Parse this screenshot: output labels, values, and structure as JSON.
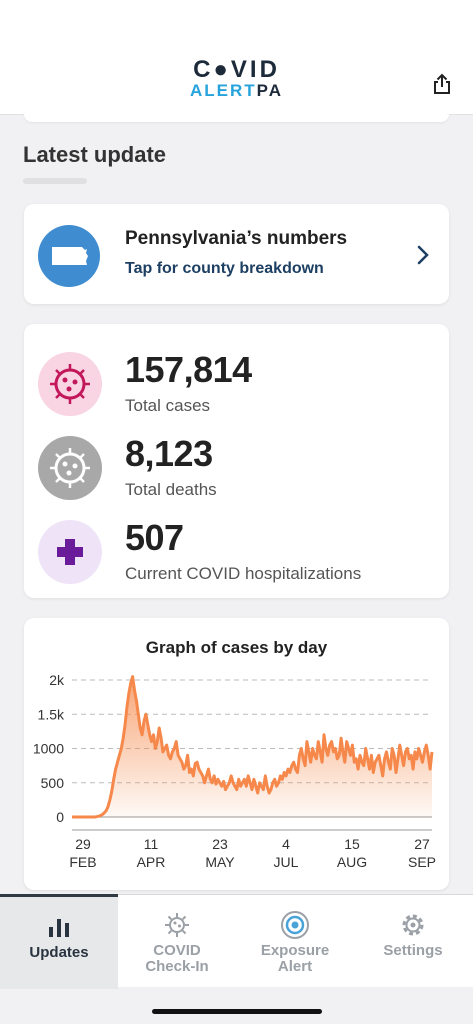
{
  "header": {
    "logo_top": "C●VID",
    "logo_bottom_a": "ALERT",
    "logo_bottom_b": "PA",
    "share_icon": "share-icon"
  },
  "section": {
    "title": "Latest update"
  },
  "pa_card": {
    "title": "Pennsylvania’s numbers",
    "subtitle": "Tap for county breakdown",
    "icon": "pennsylvania-map-icon"
  },
  "stats": {
    "cases": {
      "value": "157,814",
      "label": "Total cases",
      "color": "#f9d4e2"
    },
    "deaths": {
      "value": "8,123",
      "label": "Total deaths",
      "color": "#a8a8a8"
    },
    "hospitalizations": {
      "value": "507",
      "label": "Current COVID hospitalizations",
      "color": "#efe3f7"
    }
  },
  "chart_data": {
    "type": "area",
    "title": "Graph of cases by day",
    "y_ticks": [
      "2k",
      "1.5k",
      "1000",
      "500",
      "0"
    ],
    "ylim": [
      0,
      2000
    ],
    "x_ticks": [
      {
        "day": "29",
        "month": "FEB"
      },
      {
        "day": "11",
        "month": "APR"
      },
      {
        "day": "23",
        "month": "MAY"
      },
      {
        "day": "4",
        "month": "JUL"
      },
      {
        "day": "15",
        "month": "AUG"
      },
      {
        "day": "27",
        "month": "SEP"
      }
    ],
    "series": [
      {
        "color": "#f5884a",
        "values": [
          0,
          0,
          0,
          0,
          0,
          0,
          0,
          0,
          0,
          0,
          0,
          0,
          0,
          5,
          10,
          20,
          35,
          60,
          90,
          150,
          250,
          380,
          550,
          700,
          800,
          900,
          1000,
          1150,
          1350,
          1600,
          1800,
          1950,
          2050,
          1850,
          1700,
          1500,
          1300,
          1200,
          1400,
          1500,
          1350,
          1200,
          1100,
          1200,
          1000,
          1100,
          1300,
          1150,
          950,
          1000,
          1050,
          900,
          850,
          950,
          1000,
          1100,
          900,
          850,
          800,
          700,
          750,
          900,
          650,
          700,
          600,
          780,
          800,
          700,
          650,
          600,
          500,
          600,
          700,
          550,
          500,
          600,
          480,
          550,
          500,
          450,
          520,
          400,
          450,
          500,
          600,
          500,
          450,
          400,
          550,
          450,
          500,
          550,
          450,
          600,
          500,
          400,
          550,
          450,
          350,
          500,
          450,
          400,
          600,
          450,
          350,
          400,
          500,
          550,
          450,
          500,
          600,
          550,
          650,
          600,
          700,
          650,
          750,
          800,
          700,
          650,
          900,
          1000,
          850,
          750,
          1100,
          950,
          800,
          1000,
          900,
          850,
          1100,
          950,
          800,
          1200,
          1000,
          900,
          1050,
          1100,
          950,
          1000,
          850,
          900,
          1150,
          950,
          800,
          1100,
          1000,
          900,
          1050,
          800,
          850,
          700,
          900,
          800,
          750,
          1000,
          850,
          700,
          900,
          650,
          800,
          850,
          900,
          750,
          600,
          850,
          950,
          800,
          700,
          1000,
          900,
          650,
          850,
          1050,
          900,
          750,
          950,
          1000,
          850,
          900,
          700,
          950,
          850,
          1000,
          900,
          800,
          950,
          1050,
          900,
          700,
          950
        ]
      }
    ]
  },
  "tabs": [
    {
      "label": "Updates",
      "icon": "bar-chart-icon"
    },
    {
      "label": "COVID Check-In",
      "label1": "COVID",
      "label2": "Check-In",
      "icon": "virus-icon"
    },
    {
      "label": "Exposure Alert",
      "label1": "Exposure",
      "label2": "Alert",
      "icon": "exposure-icon"
    },
    {
      "label": "Settings",
      "icon": "gear-icon"
    }
  ]
}
